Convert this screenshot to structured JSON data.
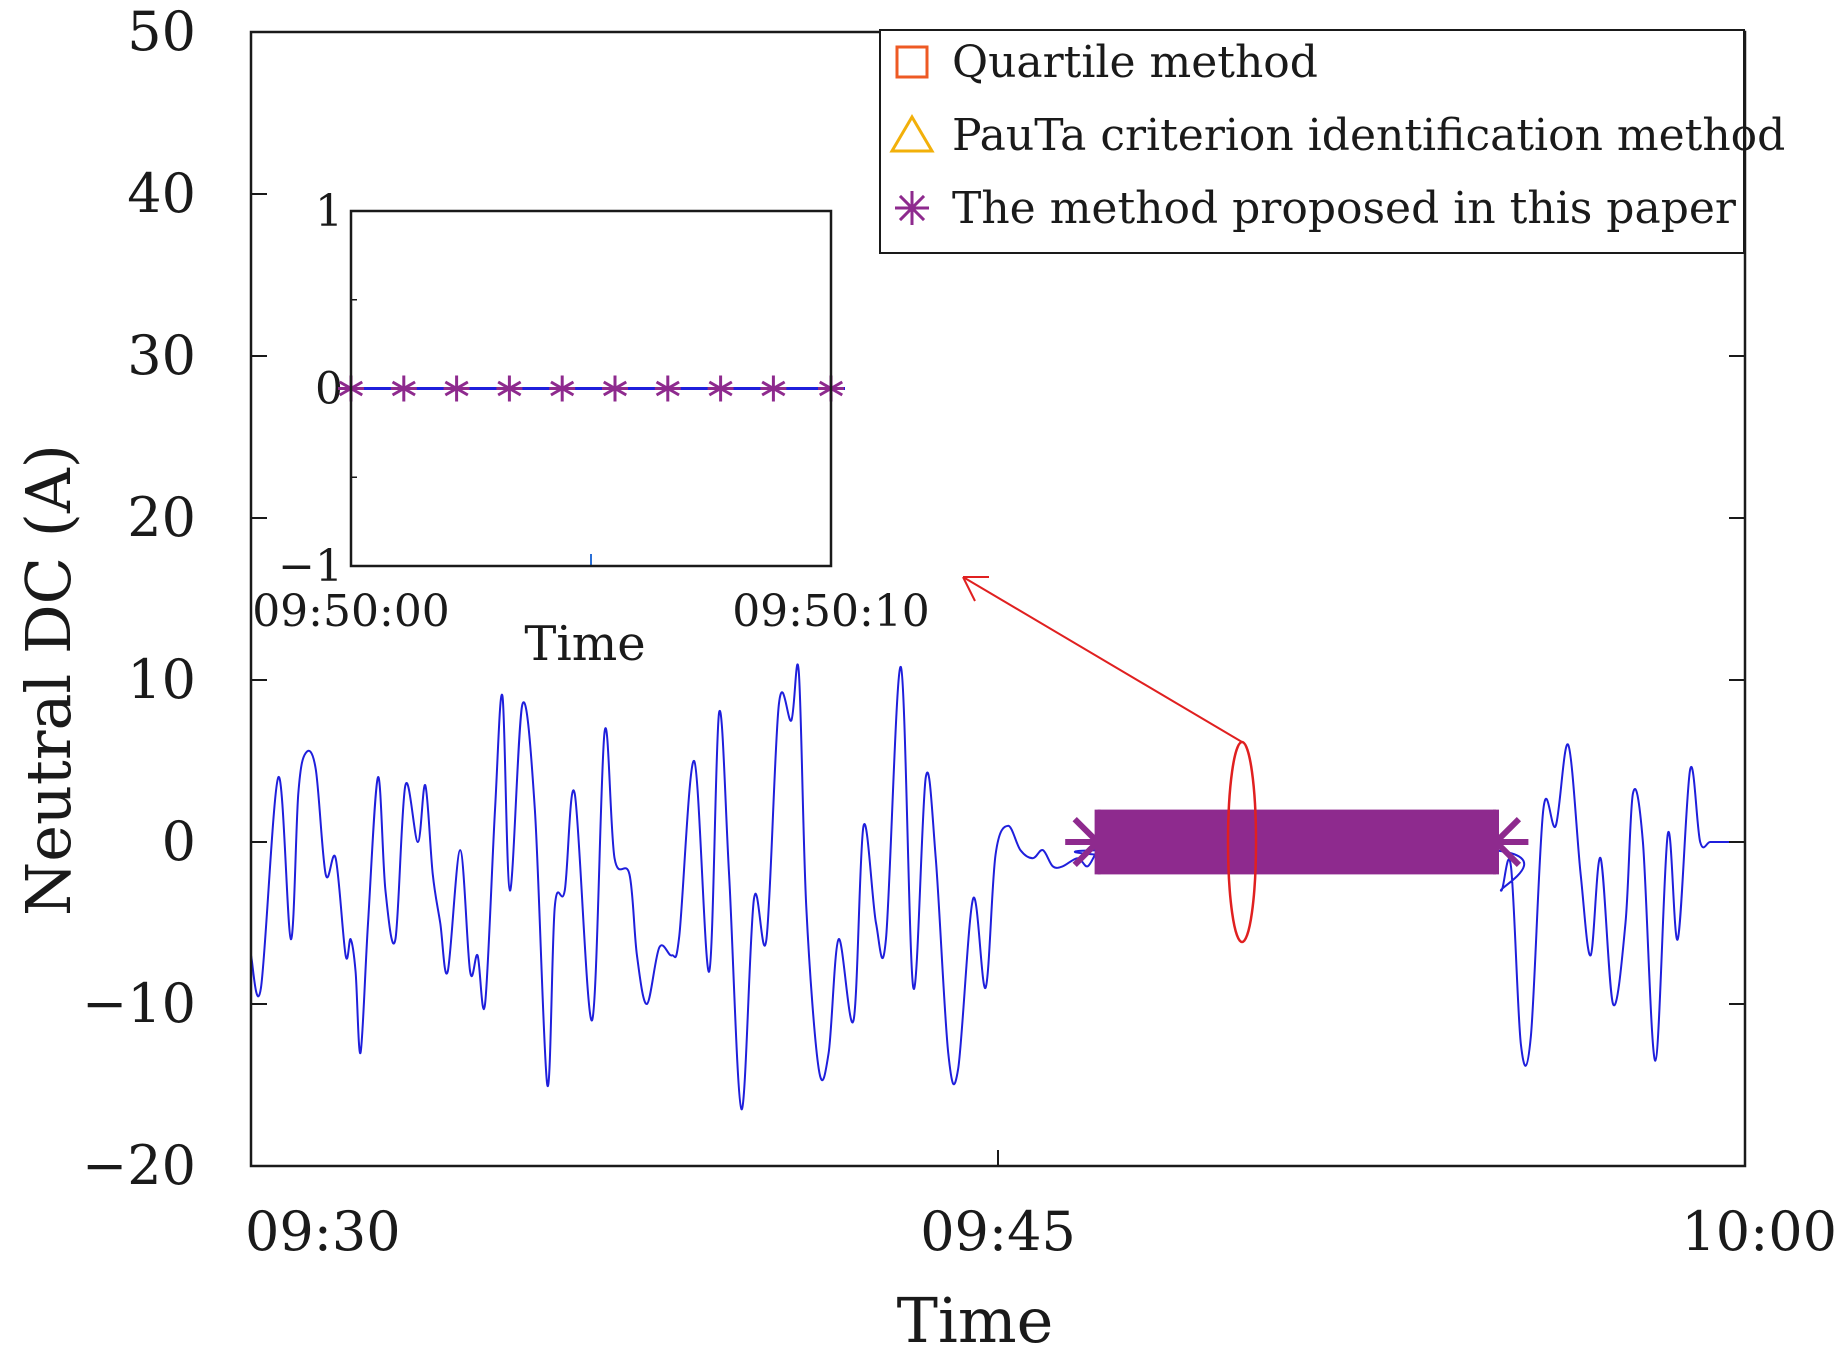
{
  "chart_data": {
    "type": "line",
    "title": "",
    "xlabel": "Time",
    "ylabel": "Neutral DC (A)",
    "x_unit": "minutes after 09:30",
    "xlim": [
      0,
      30
    ],
    "ylim": [
      -20,
      50
    ],
    "x_ticks": [
      {
        "value": 0,
        "label": "09:30"
      },
      {
        "value": 15,
        "label": "09:45"
      },
      {
        "value": 30,
        "label": "10:00"
      }
    ],
    "y_ticks": [
      {
        "value": 50,
        "label": "50"
      },
      {
        "value": 40,
        "label": "40"
      },
      {
        "value": 30,
        "label": "30"
      },
      {
        "value": 20,
        "label": "20"
      },
      {
        "value": 10,
        "label": "10"
      },
      {
        "value": 0,
        "label": "0"
      },
      {
        "value": -10,
        "label": "−10"
      },
      {
        "value": -20,
        "label": "−20"
      }
    ],
    "series": [
      {
        "name": "Neutral DC",
        "color": "#1f1fdc",
        "x": [
          0,
          0.2,
          0.55,
          0.8,
          0.95,
          1.1,
          1.3,
          1.5,
          1.7,
          1.9,
          2.0,
          2.1,
          2.2,
          2.35,
          2.55,
          2.7,
          2.9,
          3.1,
          3.35,
          3.5,
          3.65,
          3.8,
          3.95,
          4.2,
          4.4,
          4.55,
          4.7,
          4.9,
          5.05,
          5.2,
          5.45,
          5.7,
          5.95,
          6.1,
          6.3,
          6.5,
          6.85,
          7.1,
          7.3,
          7.6,
          7.75,
          7.95,
          8.2,
          8.45,
          8.6,
          8.9,
          9.2,
          9.4,
          9.6,
          9.85,
          10.1,
          10.35,
          10.6,
          10.85,
          11.0,
          11.15,
          11.4,
          11.6,
          11.8,
          12.1,
          12.3,
          12.55,
          12.75,
          13.05,
          13.3,
          13.55,
          13.75,
          14.0,
          14.2,
          14.5,
          14.75,
          14.95,
          15.2,
          15.45,
          15.7,
          15.9,
          16.1,
          16.3,
          16.6,
          16.8,
          17.0,
          17.05,
          17.15,
          24.95,
          25.1,
          25.3,
          25.5,
          25.7,
          25.95,
          26.2,
          26.45,
          26.7,
          26.9,
          27.1,
          27.35,
          27.6,
          27.75,
          27.95,
          28.2,
          28.45,
          28.65,
          28.9,
          29.1,
          29.3,
          29.55,
          29.8,
          30.0
        ],
        "values": [
          -7,
          -9,
          4,
          -6,
          3,
          5.5,
          4.5,
          -2,
          -1,
          -7,
          -6,
          -8,
          -13,
          -5,
          4,
          -3,
          -6,
          3.5,
          0,
          3.5,
          -2,
          -5,
          -8,
          -0.5,
          -8,
          -7,
          -10,
          2,
          9,
          -3,
          8.5,
          2,
          -15,
          -4,
          -3,
          3,
          -11,
          6.8,
          -1,
          -2,
          -7,
          -10,
          -6.5,
          -7,
          -5.8,
          5,
          -8,
          8,
          -2,
          -16.5,
          -3.5,
          -6,
          8.5,
          7.5,
          10.5,
          -4,
          -14,
          -13,
          -6,
          -11,
          1,
          -5,
          -6,
          10.8,
          -9,
          4,
          -1,
          -13,
          -14,
          -3.5,
          -9,
          -0.8,
          1,
          -0.5,
          -1,
          -0.5,
          -1.5,
          -1.5,
          -1,
          -1.5,
          -0.5,
          -0.8,
          -0.5,
          -0.5,
          -3,
          -1.5,
          -12.5,
          -12,
          2,
          1,
          6,
          -2,
          -7,
          -1,
          -10,
          -5,
          3,
          0,
          -13.5,
          0.5,
          -6,
          4.5,
          0,
          0,
          0,
          0,
          0
        ]
      },
      {
        "name": "The method proposed in this paper",
        "marker": "asterisk",
        "color": "#8e2a8e",
        "x_range": [
          16.5,
          25.5
        ],
        "value": 0,
        "band": [
          -2,
          2
        ]
      }
    ],
    "legend": {
      "position": "top-right",
      "entries": [
        {
          "label": "Quartile method",
          "marker": "square",
          "color": "#ee5a24"
        },
        {
          "label": "PauTa criterion identification method",
          "marker": "triangle",
          "color": "#f2b00a"
        },
        {
          "label": "The method proposed in this paper",
          "marker": "asterisk",
          "color": "#8e2a8e"
        }
      ]
    },
    "inset": {
      "xlabel": "Time",
      "x_ticks": [
        {
          "value": 0,
          "label": "09:50:00"
        },
        {
          "value": 10,
          "label": "09:50:10"
        }
      ],
      "y_ticks": [
        {
          "value": 1,
          "label": "1"
        },
        {
          "value": 0,
          "label": "0"
        },
        {
          "value": -1,
          "label": "−1"
        }
      ],
      "xlim": [
        0,
        10
      ],
      "ylim": [
        -1,
        1
      ],
      "series": {
        "name": "The method proposed in this paper",
        "x": [
          0,
          1.1,
          2.2,
          3.3,
          4.4,
          5.5,
          6.6,
          7.7,
          8.8,
          10.0
        ],
        "values": [
          0,
          0,
          0,
          0,
          0,
          0,
          0,
          0,
          0,
          0
        ]
      }
    },
    "annotation": {
      "type": "zoom-ellipse",
      "target": "inset",
      "color": "#e02020",
      "x": 19.9,
      "y": 0
    }
  }
}
